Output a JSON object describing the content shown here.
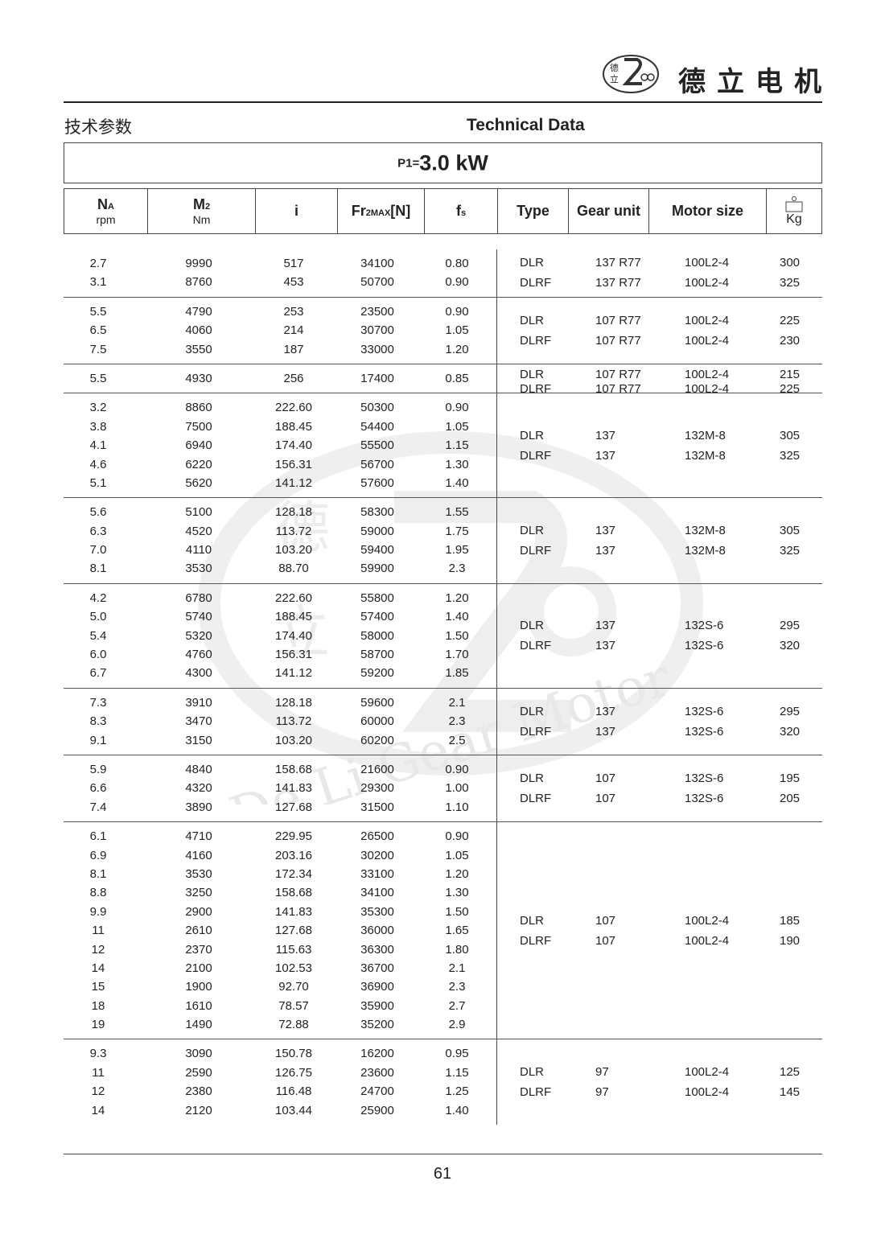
{
  "brand": {
    "name": "德立电机",
    "logo_text": "De Li Gear Motor",
    "logo_chars": "德立"
  },
  "header": {
    "cn_title": "技术参数",
    "en_title": "Technical Data"
  },
  "power": {
    "label": "P1=",
    "value": "3.0 kW"
  },
  "columns": {
    "na": {
      "main": "N",
      "sub_letter": "A",
      "unit": "rpm"
    },
    "m2": {
      "main": "M",
      "sub_letter": "2",
      "unit": "Nm"
    },
    "i": {
      "main": "i"
    },
    "fr": {
      "main": "Fr",
      "sub_letter": "2MAX",
      "suffix": "[N]"
    },
    "fs": {
      "main": "f",
      "sub_letter": "s"
    },
    "type": "Type",
    "gear_unit": "Gear unit",
    "motor_size": "Motor size",
    "weight_unit": "Kg"
  },
  "groups": [
    {
      "rows": [
        [
          "2.7",
          "9990",
          "517",
          "34100",
          "0.80"
        ],
        [
          "3.1",
          "8760",
          "453",
          "50700",
          "0.90"
        ]
      ],
      "types": [
        [
          "DLR",
          "137 R77",
          "100L2-4",
          "300"
        ],
        [
          "DLRF",
          "137 R77",
          "100L2-4",
          "325"
        ]
      ]
    },
    {
      "rows": [
        [
          "5.5",
          "4790",
          "253",
          "23500",
          "0.90"
        ],
        [
          "6.5",
          "4060",
          "214",
          "30700",
          "1.05"
        ],
        [
          "7.5",
          "3550",
          "187",
          "33000",
          "1.20"
        ]
      ],
      "types": [
        [
          "DLR",
          "107 R77",
          "100L2-4",
          "225"
        ],
        [
          "DLRF",
          "107 R77",
          "100L2-4",
          "230"
        ]
      ]
    },
    {
      "rows": [
        [
          "5.5",
          "4930",
          "256",
          "17400",
          "0.85"
        ]
      ],
      "types": [
        [
          "DLR",
          "107 R77",
          "100L2-4",
          "215"
        ],
        [
          "DLRF",
          "107 R77",
          "100L2-4",
          "225"
        ]
      ]
    },
    {
      "rows": [
        [
          "3.2",
          "8860",
          "222.60",
          "50300",
          "0.90"
        ],
        [
          "3.8",
          "7500",
          "188.45",
          "54400",
          "1.05"
        ],
        [
          "4.1",
          "6940",
          "174.40",
          "55500",
          "1.15"
        ],
        [
          "4.6",
          "6220",
          "156.31",
          "56700",
          "1.30"
        ],
        [
          "5.1",
          "5620",
          "141.12",
          "57600",
          "1.40"
        ]
      ],
      "types": [
        [
          "DLR",
          "137",
          "132M-8",
          "305"
        ],
        [
          "DLRF",
          "137",
          "132M-8",
          "325"
        ]
      ]
    },
    {
      "rows": [
        [
          "5.6",
          "5100",
          "128.18",
          "58300",
          "1.55"
        ],
        [
          "6.3",
          "4520",
          "113.72",
          "59000",
          "1.75"
        ],
        [
          "7.0",
          "4110",
          "103.20",
          "59400",
          "1.95"
        ],
        [
          "8.1",
          "3530",
          "88.70",
          "59900",
          "2.3"
        ]
      ],
      "types": [
        [
          "DLR",
          "137",
          "132M-8",
          "305"
        ],
        [
          "DLRF",
          "137",
          "132M-8",
          "325"
        ]
      ]
    },
    {
      "rows": [
        [
          "4.2",
          "6780",
          "222.60",
          "55800",
          "1.20"
        ],
        [
          "5.0",
          "5740",
          "188.45",
          "57400",
          "1.40"
        ],
        [
          "5.4",
          "5320",
          "174.40",
          "58000",
          "1.50"
        ],
        [
          "6.0",
          "4760",
          "156.31",
          "58700",
          "1.70"
        ],
        [
          "6.7",
          "4300",
          "141.12",
          "59200",
          "1.85"
        ]
      ],
      "types": [
        [
          "DLR",
          "137",
          "132S-6",
          "295"
        ],
        [
          "DLRF",
          "137",
          "132S-6",
          "320"
        ]
      ]
    },
    {
      "rows": [
        [
          "7.3",
          "3910",
          "128.18",
          "59600",
          "2.1"
        ],
        [
          "8.3",
          "3470",
          "113.72",
          "60000",
          "2.3"
        ],
        [
          "9.1",
          "3150",
          "103.20",
          "60200",
          "2.5"
        ]
      ],
      "types": [
        [
          "DLR",
          "137",
          "132S-6",
          "295"
        ],
        [
          "DLRF",
          "137",
          "132S-6",
          "320"
        ]
      ]
    },
    {
      "rows": [
        [
          "5.9",
          "4840",
          "158.68",
          "21600",
          "0.90"
        ],
        [
          "6.6",
          "4320",
          "141.83",
          "29300",
          "1.00"
        ],
        [
          "7.4",
          "3890",
          "127.68",
          "31500",
          "1.10"
        ]
      ],
      "types": [
        [
          "DLR",
          "107",
          "132S-6",
          "195"
        ],
        [
          "DLRF",
          "107",
          "132S-6",
          "205"
        ]
      ]
    },
    {
      "rows": [
        [
          "6.1",
          "4710",
          "229.95",
          "26500",
          "0.90"
        ],
        [
          "6.9",
          "4160",
          "203.16",
          "30200",
          "1.05"
        ],
        [
          "8.1",
          "3530",
          "172.34",
          "33100",
          "1.20"
        ],
        [
          "8.8",
          "3250",
          "158.68",
          "34100",
          "1.30"
        ],
        [
          "9.9",
          "2900",
          "141.83",
          "35300",
          "1.50"
        ],
        [
          "11",
          "2610",
          "127.68",
          "36000",
          "1.65"
        ],
        [
          "12",
          "2370",
          "115.63",
          "36300",
          "1.80"
        ],
        [
          "14",
          "2100",
          "102.53",
          "36700",
          "2.1"
        ],
        [
          "15",
          "1900",
          "92.70",
          "36900",
          "2.3"
        ],
        [
          "18",
          "1610",
          "78.57",
          "35900",
          "2.7"
        ],
        [
          "19",
          "1490",
          "72.88",
          "35200",
          "2.9"
        ]
      ],
      "types": [
        [
          "DLR",
          "107",
          "100L2-4",
          "185"
        ],
        [
          "DLRF",
          "107",
          "100L2-4",
          "190"
        ]
      ]
    },
    {
      "rows": [
        [
          "9.3",
          "3090",
          "150.78",
          "16200",
          "0.95"
        ],
        [
          "11",
          "2590",
          "126.75",
          "23600",
          "1.15"
        ],
        [
          "12",
          "2380",
          "116.48",
          "24700",
          "1.25"
        ],
        [
          "14",
          "2120",
          "103.44",
          "25900",
          "1.40"
        ]
      ],
      "types": [
        [
          "DLR",
          "97",
          "100L2-4",
          "125"
        ],
        [
          "DLRF",
          "97",
          "100L2-4",
          "145"
        ]
      ]
    }
  ],
  "watermark": {
    "text": "De Li Gear Motor",
    "chars": "德立"
  },
  "footer": {
    "page_number": "61"
  }
}
